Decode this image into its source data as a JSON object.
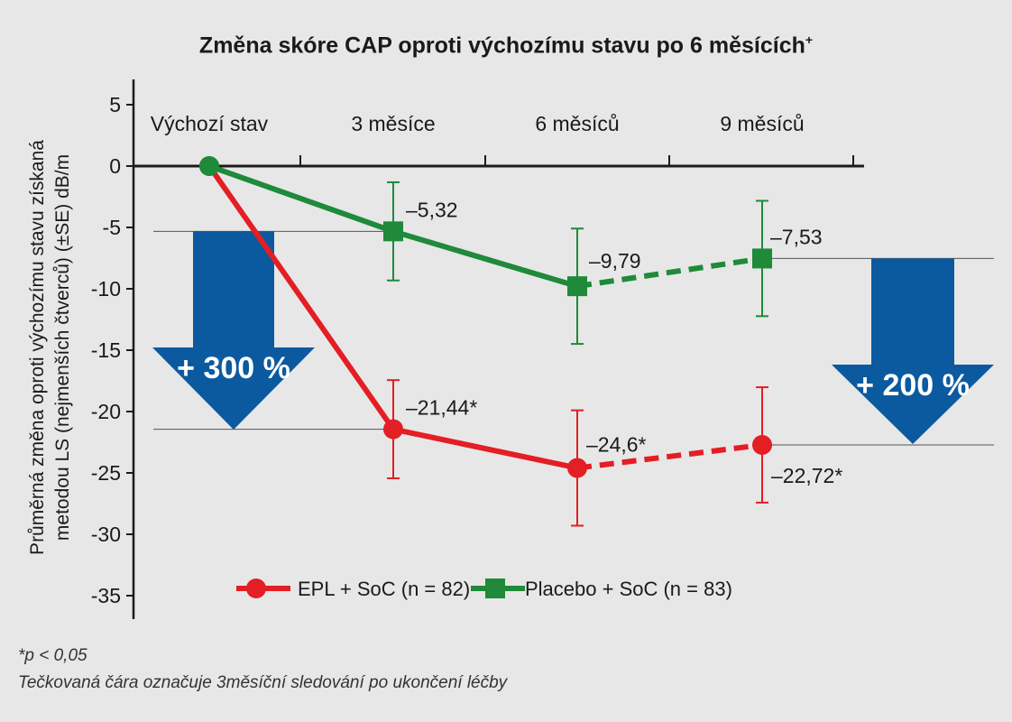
{
  "chart_data": {
    "type": "line",
    "title": "Změna skóre CAP oproti výchozímu stavu po 6 měsících",
    "title_superscript": "+",
    "ylabel_line1": "Průměrná změna oproti výchozímu stavu získaná",
    "ylabel_line2": "metodou LS (nejmenších čtverců) (±SE) dB/m",
    "categories": [
      "Výchozí stav",
      "3 měsíce",
      "6 měsíců",
      "9 měsíců"
    ],
    "ylim": [
      -35,
      5
    ],
    "yticks": [
      5,
      0,
      -5,
      -10,
      -15,
      -20,
      -25,
      -30,
      -35
    ],
    "ytick_labels": [
      "5",
      "0",
      "-5",
      "-10",
      "-15",
      "-20",
      "-25",
      "-30",
      "-35"
    ],
    "series": [
      {
        "name": "EPL + SoC (n = 82)",
        "color": "#e31e24",
        "marker": "circle",
        "values": [
          0,
          -21.44,
          -24.6,
          -22.72
        ],
        "errors": [
          0,
          4,
          4.7,
          4.7
        ],
        "labels": [
          "",
          "–21,44*",
          "–24,6*",
          "–22,72*"
        ],
        "dashed_from_index": 2
      },
      {
        "name": "Placebo + SoC (n = 83)",
        "color": "#1e8a3a",
        "marker": "square",
        "values": [
          0,
          -5.32,
          -9.79,
          -7.53
        ],
        "errors": [
          0,
          4,
          4.7,
          4.7
        ],
        "labels": [
          "",
          "–5,32",
          "–9,79",
          "–7,53"
        ],
        "dashed_from_index": 2
      }
    ],
    "arrows": [
      {
        "label": "+ 300 %",
        "color": "#0b5aa0"
      },
      {
        "label": "+ 200 %",
        "color": "#0b5aa0"
      }
    ],
    "grid": false,
    "legend_position": "bottom-center"
  },
  "footnotes": {
    "line1": "*p < 0,05",
    "line2": "Tečkovaná čára označuje 3měsíční sledování po ukončení léčby"
  }
}
